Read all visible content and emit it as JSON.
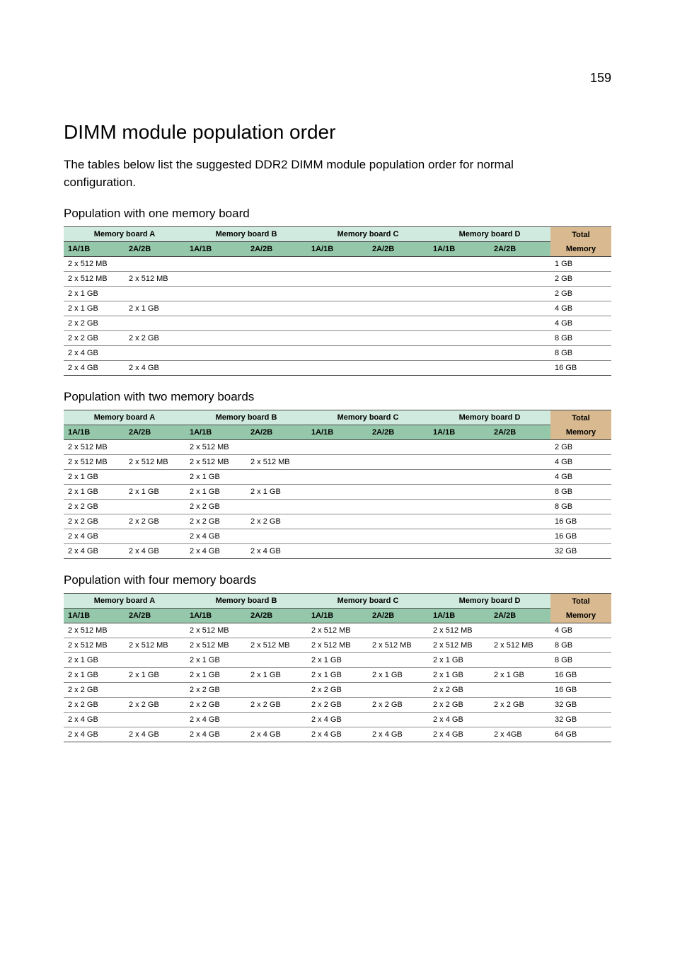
{
  "page_number": "159",
  "title": "DIMM module population order",
  "intro": "The tables below list the suggested DDR2 DIMM module population order for normal configuration.",
  "header_labels": {
    "board_a": "Memory board A",
    "board_b": "Memory board B",
    "board_c": "Memory board C",
    "board_d": "Memory board D",
    "slot1": "1A/1B",
    "slot2": "2A/2B",
    "total": "Total",
    "memory": "Memory"
  },
  "style": {
    "header_bg_green_light": "#d0eadf",
    "header_bg_green_dark": "#95c8aa",
    "header_bg_tan": "#d9b98f",
    "row_border": "#8a8a8a",
    "outer_border": "#4a4a4a",
    "font_size_table": 11
  },
  "sections": [
    {
      "caption": "Population with one memory board",
      "rows": [
        {
          "a1": "2 x 512 MB",
          "a2": "",
          "b1": "",
          "b2": "",
          "c1": "",
          "c2": "",
          "d1": "",
          "d2": "",
          "total": "1 GB"
        },
        {
          "a1": "2 x 512 MB",
          "a2": "2 x 512 MB",
          "b1": "",
          "b2": "",
          "c1": "",
          "c2": "",
          "d1": "",
          "d2": "",
          "total": "2 GB"
        },
        {
          "a1": "2 x 1 GB",
          "a2": "",
          "b1": "",
          "b2": "",
          "c1": "",
          "c2": "",
          "d1": "",
          "d2": "",
          "total": "2 GB"
        },
        {
          "a1": "2 x 1 GB",
          "a2": "2 x 1 GB",
          "b1": "",
          "b2": "",
          "c1": "",
          "c2": "",
          "d1": "",
          "d2": "",
          "total": "4 GB"
        },
        {
          "a1": "2 x 2 GB",
          "a2": "",
          "b1": "",
          "b2": "",
          "c1": "",
          "c2": "",
          "d1": "",
          "d2": "",
          "total": "4 GB"
        },
        {
          "a1": "2 x 2 GB",
          "a2": "2 x 2 GB",
          "b1": "",
          "b2": "",
          "c1": "",
          "c2": "",
          "d1": "",
          "d2": "",
          "total": "8 GB"
        },
        {
          "a1": "2 x 4 GB",
          "a2": "",
          "b1": "",
          "b2": "",
          "c1": "",
          "c2": "",
          "d1": "",
          "d2": "",
          "total": "8 GB"
        },
        {
          "a1": "2 x 4 GB",
          "a2": "2 x 4 GB",
          "b1": "",
          "b2": "",
          "c1": "",
          "c2": "",
          "d1": "",
          "d2": "",
          "total": "16 GB"
        }
      ]
    },
    {
      "caption": "Population with two memory boards",
      "rows": [
        {
          "a1": "2 x 512 MB",
          "a2": "",
          "b1": "2 x 512 MB",
          "b2": "",
          "c1": "",
          "c2": "",
          "d1": "",
          "d2": "",
          "total": "2 GB"
        },
        {
          "a1": "2 x 512 MB",
          "a2": "2 x 512 MB",
          "b1": "2 x 512 MB",
          "b2": "2 x 512 MB",
          "c1": "",
          "c2": "",
          "d1": "",
          "d2": "",
          "total": "4 GB"
        },
        {
          "a1": "2 x 1 GB",
          "a2": "",
          "b1": "2 x 1 GB",
          "b2": "",
          "c1": "",
          "c2": "",
          "d1": "",
          "d2": "",
          "total": "4 GB"
        },
        {
          "a1": "2 x 1 GB",
          "a2": "2 x 1 GB",
          "b1": "2 x 1 GB",
          "b2": "2 x 1 GB",
          "c1": "",
          "c2": "",
          "d1": "",
          "d2": "",
          "total": "8 GB"
        },
        {
          "a1": "2 x 2 GB",
          "a2": "",
          "b1": "2 x 2 GB",
          "b2": "",
          "c1": "",
          "c2": "",
          "d1": "",
          "d2": "",
          "total": "8 GB"
        },
        {
          "a1": "2 x 2 GB",
          "a2": "2 x 2 GB",
          "b1": "2 x 2 GB",
          "b2": "2 x 2 GB",
          "c1": "",
          "c2": "",
          "d1": "",
          "d2": "",
          "total": "16 GB"
        },
        {
          "a1": "2 x 4 GB",
          "a2": "",
          "b1": "2 x 4 GB",
          "b2": "",
          "c1": "",
          "c2": "",
          "d1": "",
          "d2": "",
          "total": "16 GB"
        },
        {
          "a1": "2 x 4 GB",
          "a2": "2 x 4 GB",
          "b1": "2 x 4 GB",
          "b2": "2 x 4 GB",
          "c1": "",
          "c2": "",
          "d1": "",
          "d2": "",
          "total": "32 GB"
        }
      ]
    },
    {
      "caption": "Population with four memory boards",
      "rows": [
        {
          "a1": "2 x 512 MB",
          "a2": "",
          "b1": "2 x 512 MB",
          "b2": "",
          "c1": "2 x 512 MB",
          "c2": "",
          "d1": "2 x 512 MB",
          "d2": "",
          "total": "4 GB"
        },
        {
          "a1": "2 x 512 MB",
          "a2": "2 x 512 MB",
          "b1": "2 x 512 MB",
          "b2": "2 x 512 MB",
          "c1": "2 x 512 MB",
          "c2": "2 x 512 MB",
          "d1": "2 x 512 MB",
          "d2": "2 x 512 MB",
          "total": "8 GB"
        },
        {
          "a1": "2 x 1 GB",
          "a2": "",
          "b1": "2 x 1 GB",
          "b2": "",
          "c1": "2 x 1 GB",
          "c2": "",
          "d1": "2 x 1 GB",
          "d2": "",
          "total": "8 GB"
        },
        {
          "a1": "2 x 1 GB",
          "a2": "2 x 1 GB",
          "b1": "2 x 1 GB",
          "b2": "2 x 1 GB",
          "c1": "2 x 1 GB",
          "c2": "2 x 1 GB",
          "d1": "2 x 1 GB",
          "d2": "2 x 1 GB",
          "total": "16 GB"
        },
        {
          "a1": "2 x 2 GB",
          "a2": "",
          "b1": "2 x 2 GB",
          "b2": "",
          "c1": "2 x 2 GB",
          "c2": "",
          "d1": "2 x 2 GB",
          "d2": "",
          "total": "16 GB"
        },
        {
          "a1": "2 x 2 GB",
          "a2": "2 x 2 GB",
          "b1": "2 x 2 GB",
          "b2": "2 x 2 GB",
          "c1": "2 x 2 GB",
          "c2": "2 x 2 GB",
          "d1": "2 x 2 GB",
          "d2": "2 x 2 GB",
          "total": "32 GB"
        },
        {
          "a1": "2 x 4 GB",
          "a2": "",
          "b1": "2 x 4 GB",
          "b2": "",
          "c1": "2 x 4 GB",
          "c2": "",
          "d1": "2 x 4 GB",
          "d2": "",
          "total": "32 GB"
        },
        {
          "a1": "2 x 4 GB",
          "a2": "2 x 4 GB",
          "b1": "2 x 4 GB",
          "b2": "2 x 4 GB",
          "c1": "2 x 4 GB",
          "c2": "2 x 4 GB",
          "d1": "2 x 4 GB",
          "d2": "2 x 4GB",
          "total": "64 GB"
        }
      ]
    }
  ]
}
